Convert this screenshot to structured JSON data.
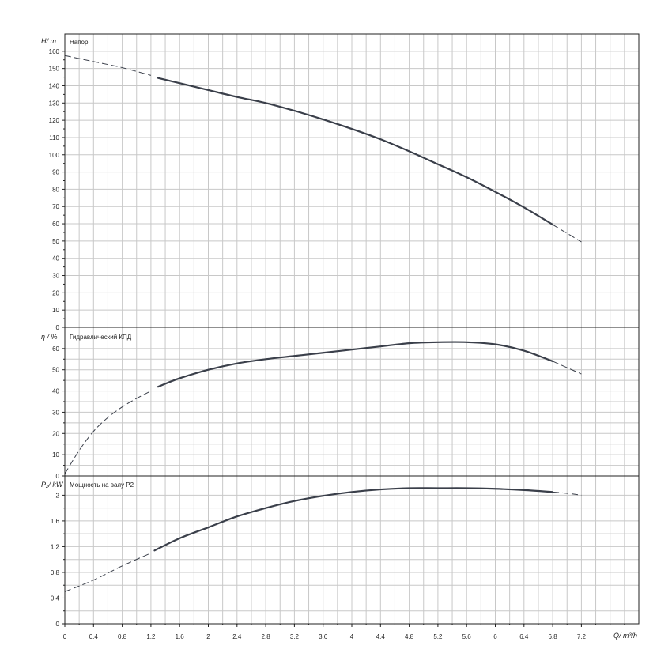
{
  "chart_data": [
    {
      "type": "line",
      "panel": "head",
      "title": "Напор",
      "ylabel": "H/ m",
      "xlabel": "Q/ m³/h",
      "ylim": [
        0,
        170
      ],
      "yticks": [
        0,
        10,
        20,
        30,
        40,
        50,
        60,
        70,
        80,
        90,
        100,
        110,
        120,
        130,
        140,
        150,
        160
      ],
      "ytick_labels": [
        "0",
        "10",
        "20",
        "30",
        "40",
        "50",
        "60",
        "70",
        "80",
        "90",
        "100",
        "110",
        "120",
        "130",
        "140",
        "150",
        "160"
      ],
      "grid": true,
      "dashed_start": [
        [
          0,
          157.5
        ],
        [
          0.4,
          154
        ],
        [
          0.8,
          150.5
        ],
        [
          1.2,
          146
        ]
      ],
      "solid": [
        [
          1.3,
          144.5
        ],
        [
          1.6,
          141.5
        ],
        [
          2.0,
          137.5
        ],
        [
          2.4,
          133.5
        ],
        [
          2.8,
          130
        ],
        [
          3.2,
          125.5
        ],
        [
          3.6,
          120.5
        ],
        [
          4.0,
          115
        ],
        [
          4.4,
          109
        ],
        [
          4.8,
          102
        ],
        [
          5.2,
          94.5
        ],
        [
          5.6,
          87
        ],
        [
          6.0,
          78.5
        ],
        [
          6.4,
          69.5
        ],
        [
          6.8,
          59.5
        ]
      ],
      "dashed_end": [
        [
          6.8,
          59.5
        ],
        [
          7.0,
          54.5
        ],
        [
          7.2,
          49.5
        ]
      ]
    },
    {
      "type": "line",
      "panel": "efficiency",
      "title": "Гидравлический КПД",
      "ylabel": "η / %",
      "ylim": [
        0,
        70
      ],
      "yticks": [
        0,
        10,
        20,
        30,
        40,
        50,
        60
      ],
      "ytick_labels": [
        "0",
        "10",
        "20",
        "30",
        "40",
        "50",
        "60"
      ],
      "grid": true,
      "dashed_start": [
        [
          0,
          1
        ],
        [
          0.2,
          12
        ],
        [
          0.4,
          21
        ],
        [
          0.6,
          27.5
        ],
        [
          0.8,
          32.5
        ],
        [
          1.0,
          36.5
        ],
        [
          1.2,
          40
        ]
      ],
      "solid": [
        [
          1.3,
          42
        ],
        [
          1.6,
          46
        ],
        [
          2.0,
          50
        ],
        [
          2.4,
          53
        ],
        [
          2.8,
          55
        ],
        [
          3.2,
          56.5
        ],
        [
          3.6,
          58
        ],
        [
          4.0,
          59.5
        ],
        [
          4.4,
          61
        ],
        [
          4.8,
          62.5
        ],
        [
          5.2,
          63
        ],
        [
          5.6,
          63
        ],
        [
          6.0,
          62
        ],
        [
          6.4,
          59
        ],
        [
          6.8,
          54
        ]
      ],
      "dashed_end": [
        [
          6.8,
          54
        ],
        [
          7.0,
          51
        ],
        [
          7.2,
          48
        ]
      ]
    },
    {
      "type": "line",
      "panel": "power",
      "title": "Мощность на валу P2",
      "ylabel": "P₂/ kW",
      "ylim": [
        0,
        2.3
      ],
      "yticks": [
        0,
        0.4,
        0.8,
        1.2,
        1.6,
        2.0
      ],
      "ytick_labels": [
        "0",
        "0.4",
        "0.8",
        "1.2",
        "1.6",
        "2"
      ],
      "grid": true,
      "dashed_start": [
        [
          0,
          0.5
        ],
        [
          0.4,
          0.68
        ],
        [
          0.8,
          0.9
        ],
        [
          1.2,
          1.1
        ]
      ],
      "solid": [
        [
          1.25,
          1.14
        ],
        [
          1.6,
          1.33
        ],
        [
          2.0,
          1.5
        ],
        [
          2.4,
          1.67
        ],
        [
          2.8,
          1.8
        ],
        [
          3.2,
          1.91
        ],
        [
          3.6,
          1.99
        ],
        [
          4.0,
          2.05
        ],
        [
          4.4,
          2.09
        ],
        [
          4.8,
          2.11
        ],
        [
          5.2,
          2.11
        ],
        [
          5.6,
          2.11
        ],
        [
          6.0,
          2.1
        ],
        [
          6.4,
          2.08
        ],
        [
          6.8,
          2.05
        ]
      ],
      "dashed_end": [
        [
          6.8,
          2.05
        ],
        [
          7.0,
          2.03
        ],
        [
          7.2,
          2.0
        ]
      ]
    }
  ],
  "x_axis": {
    "xlim": [
      0,
      8.0
    ],
    "ticks": [
      0,
      0.4,
      0.8,
      1.2,
      1.6,
      2.0,
      2.4,
      2.8,
      3.2,
      3.6,
      4.0,
      4.4,
      4.8,
      5.2,
      5.6,
      6.0,
      6.4,
      6.8,
      7.2
    ],
    "tick_labels": [
      "0",
      "0.4",
      "0.8",
      "1.2",
      "1.6",
      "2",
      "2.4",
      "2.8",
      "3.2",
      "3.6",
      "4",
      "4.4",
      "4.8",
      "5.2",
      "5.6",
      "6",
      "6.4",
      "6.8",
      "7.2"
    ],
    "label": "Q/ m³/h",
    "grid_step": 0.2
  },
  "colors": {
    "curve": "#3a3f4a",
    "grid": "#c8c8c8",
    "frame": "#222222"
  }
}
